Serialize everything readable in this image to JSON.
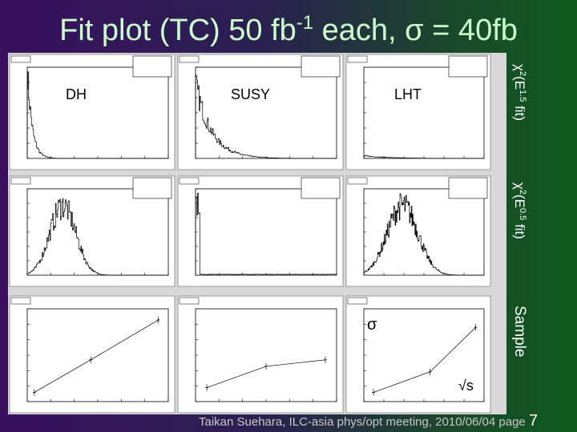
{
  "title": {
    "text": "Fit plot (TC) 50 fb",
    "superscript": "-1",
    "rest": " each, ",
    "sigma": "σ",
    "tail": " = 40fb"
  },
  "columns": [
    "DH",
    "SUSY",
    "LHT"
  ],
  "rows": [
    {
      "chi": "χ",
      "sup1": "2",
      "open": "(E",
      "sup2": "1.5",
      "close": " fit)"
    },
    {
      "chi": "χ",
      "sup1": "2",
      "open": "(E",
      "sup2": "0.5",
      "close": " fit)"
    },
    {
      "label": "Sample"
    }
  ],
  "sigma_label": "σ",
  "sqrt_s_label": "√s",
  "footer": {
    "text": "Taikan Suehara, ILC-asia phys/opt meeting, 2010/06/04 page ",
    "page": "7"
  }
}
